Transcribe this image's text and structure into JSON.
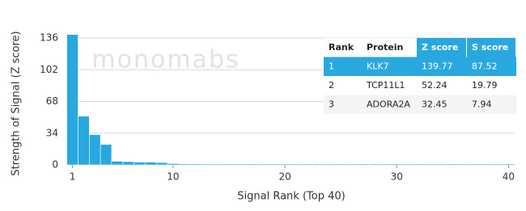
{
  "chart_data": {
    "type": "bar",
    "x_label": "Signal Rank (Top 40)",
    "y_label": "Strength of Signal (Z score)",
    "watermark": "monomabs",
    "x": [
      1,
      2,
      3,
      4,
      5,
      6,
      7,
      8,
      9,
      10,
      11,
      12,
      13,
      14,
      15,
      16,
      17,
      18,
      19,
      20,
      21,
      22,
      23,
      24,
      25,
      26,
      27,
      28,
      29,
      30,
      31,
      32,
      33,
      34,
      35,
      36,
      37,
      38,
      39,
      40
    ],
    "values": [
      139.77,
      52.24,
      32.45,
      22,
      4,
      3.5,
      3,
      3,
      2.5,
      1.5,
      1.2,
      1.1,
      1,
      1,
      1,
      1,
      1,
      1,
      1,
      1,
      1,
      1,
      1,
      1,
      1,
      1,
      1,
      1,
      1,
      1,
      1,
      1,
      1,
      1,
      1,
      1,
      1,
      1,
      1,
      1
    ],
    "color": "#29a8e0",
    "xlim": [
      0.45,
      40.55
    ],
    "xticks": [
      1,
      10,
      20,
      30,
      40
    ],
    "ylim": [
      0,
      136
    ],
    "yticks": [
      0,
      34,
      68,
      102,
      136
    ],
    "grid": true,
    "table": {
      "columns": [
        "Rank",
        "Protein",
        "Z score",
        "S score"
      ],
      "rows": [
        [
          1,
          "KLK7",
          139.77,
          87.52
        ],
        [
          2,
          "TCP11L1",
          52.24,
          19.79
        ],
        [
          3,
          "ADORA2A",
          32.45,
          7.94
        ]
      ]
    }
  }
}
